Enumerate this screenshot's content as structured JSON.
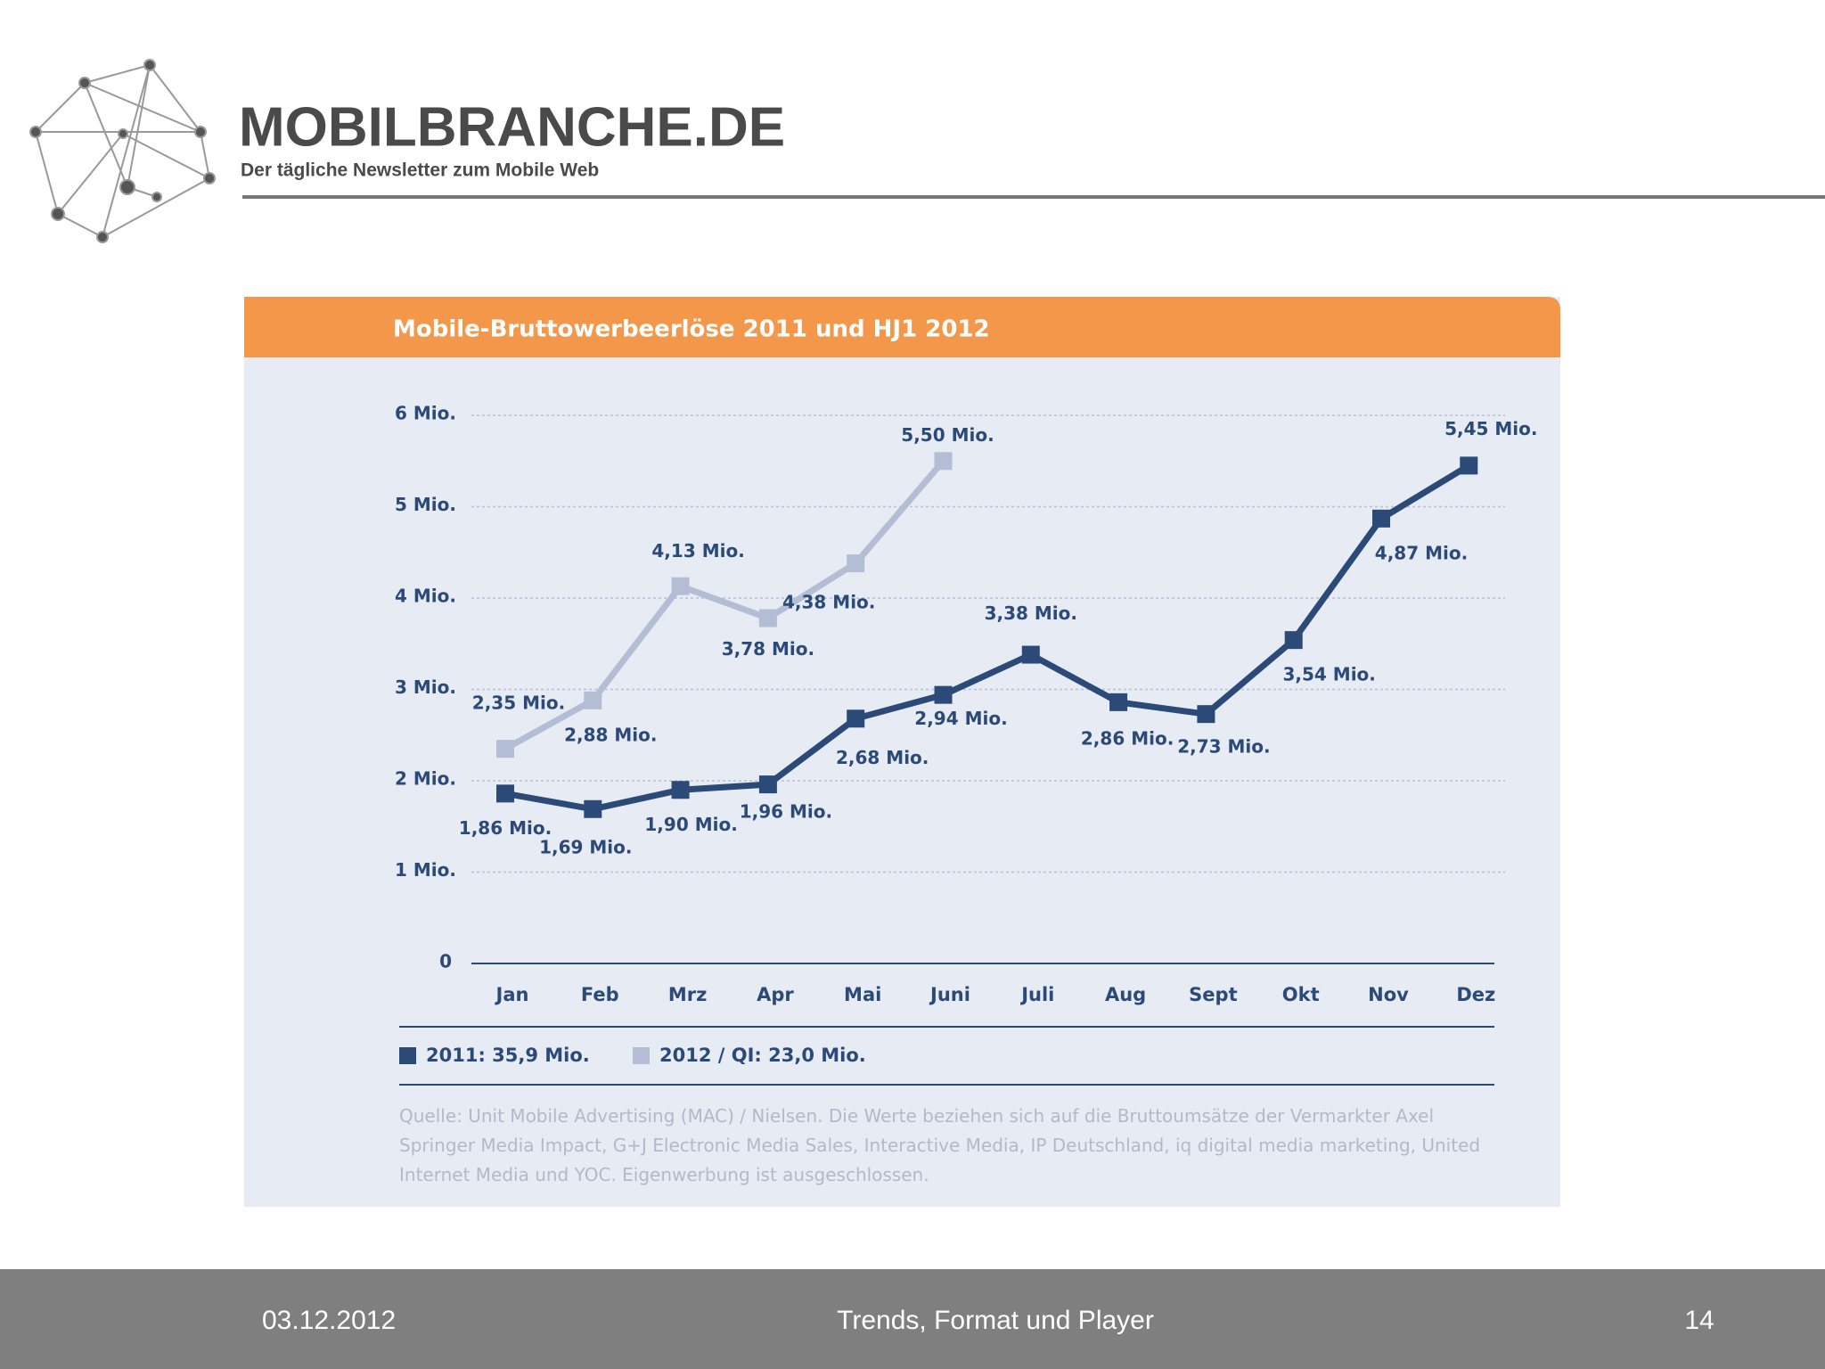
{
  "header": {
    "title": "MOBILBRANCHE.DE",
    "subtitle": "Der tägliche Newsletter zum Mobile Web"
  },
  "footer": {
    "date": "03.12.2012",
    "title": "Trends, Format und Player",
    "page": "14"
  },
  "chart_data": {
    "type": "line",
    "title": "Mobile-Bruttowerbeerlöse 2011 und HJ1 2012",
    "categories": [
      "Jan",
      "Feb",
      "Mrz",
      "Apr",
      "Mai",
      "Juni",
      "Juli",
      "Aug",
      "Sept",
      "Okt",
      "Nov",
      "Dez"
    ],
    "series": [
      {
        "name": "2011: 35,9 Mio.",
        "color": "#2c4a78",
        "values": [
          1.86,
          1.69,
          1.9,
          1.96,
          2.68,
          2.94,
          3.38,
          2.86,
          2.73,
          3.54,
          4.87,
          5.45
        ],
        "value_labels": [
          "1,86 Mio.",
          "1,69 Mio.",
          "1,90 Mio.",
          "1,96 Mio.",
          "2,68 Mio.",
          "2,94 Mio.",
          "3,38 Mio.",
          "2,86 Mio.",
          "2,73 Mio.",
          "3,54 Mio.",
          "4,87 Mio.",
          "5,45 Mio."
        ]
      },
      {
        "name": "2012 / QI: 23,0 Mio.",
        "color": "#b3bdd4",
        "values": [
          2.35,
          2.88,
          4.13,
          3.78,
          4.38,
          5.5,
          null,
          null,
          null,
          null,
          null,
          null
        ],
        "value_labels": [
          "2,35 Mio.",
          "2,88 Mio.",
          "4,13 Mio.",
          "3,78 Mio.",
          "4,38 Mio.",
          "5,50 Mio.",
          null,
          null,
          null,
          null,
          null,
          null
        ]
      }
    ],
    "ylim": [
      0,
      6
    ],
    "yticks": [
      0,
      {
        "value": 1,
        "label": "1 Mio."
      },
      {
        "value": 2,
        "label": "2 Mio."
      },
      {
        "value": 3,
        "label": "3 Mio."
      },
      {
        "value": 4,
        "label": "4 Mio."
      },
      {
        "value": 5,
        "label": "5 Mio."
      },
      {
        "value": 6,
        "label": "6 Mio."
      }
    ],
    "grid": true,
    "source": "Quelle: Unit Mobile Advertising (MAC) / Nielsen. Die Werte beziehen sich auf die Bruttoumsätze der Vermarkter Axel Springer Media Impact, G+J Electronic Media Sales, Interactive Media, IP Deutschland, iq digital media marketing, United Internet Media und YOC. Eigenwerbung ist ausgeschlossen."
  }
}
